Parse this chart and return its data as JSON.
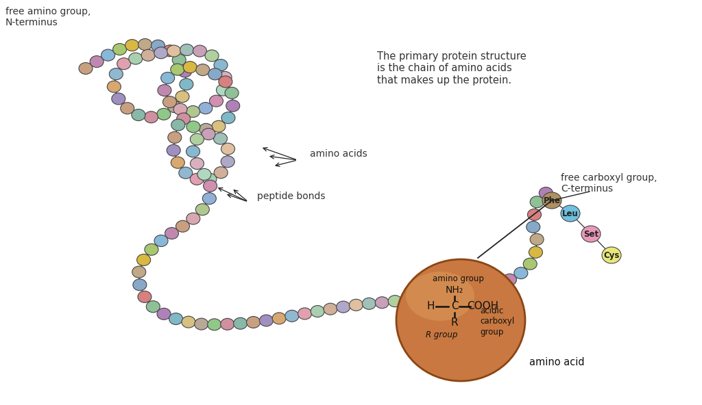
{
  "bg_color": "#ffffff",
  "title_text": "The primary protein structure\nis the chain of amino acids\nthat makes up the protein.",
  "label_free_amino": "free amino group,\nN-terminus",
  "label_amino_acids": "amino acids",
  "label_peptide_bonds": "peptide bonds",
  "label_free_carboxyl": "free carboxyl group,\nC-terminus",
  "label_amino_acid": "amino acid",
  "label_phe": "Phe",
  "label_leu": "Leu",
  "label_set": "Set",
  "label_cys": "Cys",
  "ellipse_fill": "#cc8855",
  "ellipse_edge": "#a0622a",
  "ellipse_highlight": "#dda070",
  "phe_color": "#b09060",
  "leu_color": "#70c0e0",
  "set_color": "#e898b8",
  "cys_color": "#e8e878",
  "bead_colors": [
    "#c8a080",
    "#c088b0",
    "#88b8d8",
    "#a8c870",
    "#d8b840",
    "#c0a888",
    "#88a8c8",
    "#d88080",
    "#90c098",
    "#b080b8",
    "#80b8c8",
    "#d8c080",
    "#b8a898",
    "#90c888",
    "#d090a0",
    "#88b8a8",
    "#c8a080",
    "#a090c0",
    "#d8a870",
    "#90b8d0",
    "#e0a0b0",
    "#a8d0b0",
    "#d0b098",
    "#b0a8c8",
    "#e0c0a0",
    "#a0c0b8",
    "#c8a0b8",
    "#b0d0a0",
    "#88b8d0",
    "#d8b0c0",
    "#b0d8c0",
    "#d090b0",
    "#90b0d8",
    "#b0c890",
    "#d8a8b0"
  ]
}
